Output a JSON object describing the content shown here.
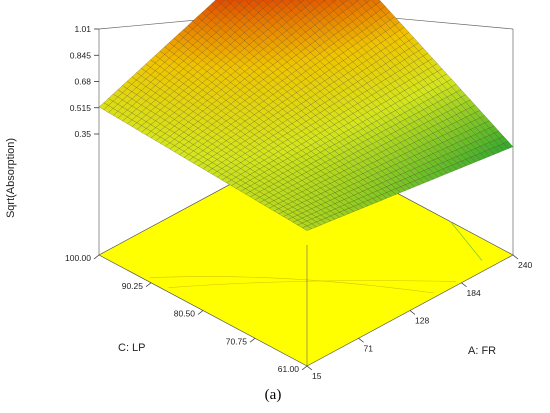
{
  "chart_data": {
    "type": "surface3d",
    "zlabel": "Sqrt(Absorption)",
    "xlabel": "A: FR",
    "ylabel": "C: LP",
    "caption": "(a)",
    "x_ticks": [
      "15",
      "71",
      "128",
      "184",
      "240"
    ],
    "y_ticks": [
      "61.00",
      "70.75",
      "80.50",
      "90.25",
      "100.00"
    ],
    "z_ticks": [
      "0.35",
      "0.515",
      "0.68",
      "0.845",
      "1.01"
    ],
    "x_range": [
      15,
      240
    ],
    "y_range": [
      61,
      100
    ],
    "z_range": [
      0.35,
      1.01
    ],
    "surface_corners": [
      {
        "A_FR": 15,
        "C_LP": 61,
        "value": 0.44
      },
      {
        "A_FR": 240,
        "C_LP": 61,
        "value": 0.27
      },
      {
        "A_FR": 15,
        "C_LP": 100,
        "value": 0.52
      },
      {
        "A_FR": 240,
        "C_LP": 100,
        "value": 1.01
      }
    ],
    "colormap": [
      "#2fa82f",
      "#d4e61e",
      "#f0c400",
      "#e04a00",
      "#d40000"
    ],
    "floor_color": "#ffff00"
  }
}
